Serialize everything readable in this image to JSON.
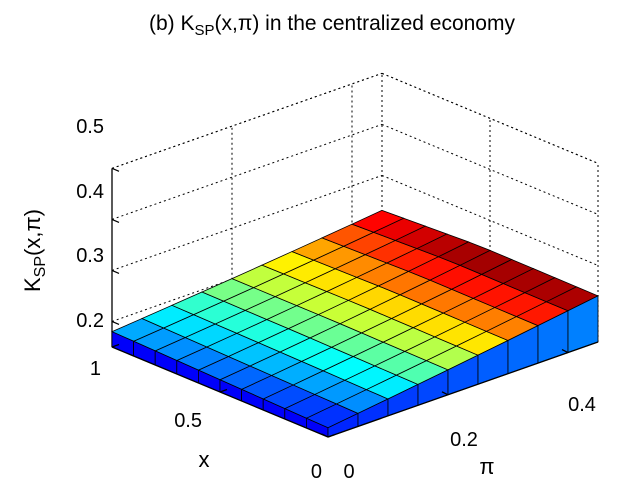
{
  "chart_data": {
    "type": "surface",
    "title_main": "(b) K",
    "title_sub": "SP",
    "title_rest": "(x,π) in the centralized economy",
    "zlabel_main": "K",
    "zlabel_sub": "SP",
    "zlabel_rest": "(x,π)",
    "xlabel": "x",
    "ylabel": "π",
    "zlim": [
      0.15,
      0.5
    ],
    "z_ticks": [
      "0.2",
      "0.3",
      "0.4",
      "0.5"
    ],
    "x_ticks": [
      "0",
      "0.5",
      "1"
    ],
    "pi_ticks": [
      "0",
      "0.2",
      "0.4"
    ],
    "x_range": [
      0,
      1
    ],
    "pi_range": [
      0,
      0.45
    ],
    "grid_x_count": 11,
    "grid_pi_count": 10,
    "z_corner_values": {
      "x1_pi0": 0.18,
      "x0_pi0": 0.168,
      "x1_pi045": 0.225,
      "x0_pi045": 0.235
    },
    "colormap": "jet",
    "grid": true
  }
}
